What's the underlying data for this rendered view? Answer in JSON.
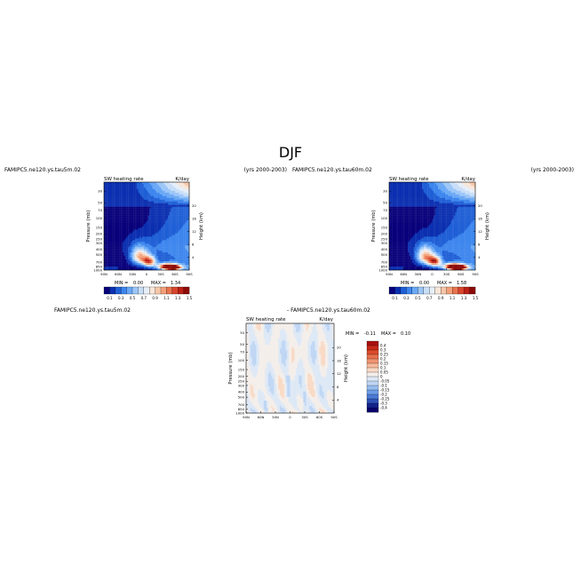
{
  "figure_title": "DJF",
  "chart_data": [
    {
      "type": "heatmap",
      "case_label": "FAMIPC5.ne120.ys.tau5m.02",
      "years_label": "(yrs 2000-2003)",
      "field_label": "SW heating rate",
      "units_label": "K/day",
      "stats": {
        "min_label": "MIN =",
        "min": "0.00",
        "max_label": "MAX =",
        "max": "1.34"
      },
      "xlabel": "",
      "ylabel": "Pressure (mb)",
      "y2label": "Height (km)",
      "x_ticks": [
        "90N",
        "60N",
        "30N",
        "0",
        "30S",
        "60S",
        "90S"
      ],
      "y_ticks": [
        "1000",
        "850",
        "700",
        "500",
        "400",
        "300",
        "250",
        "200",
        "150",
        "100",
        "70",
        "50",
        "30"
      ],
      "y2_ticks": [
        "4",
        "8",
        "12",
        "16",
        "20"
      ],
      "colorbar_labels": [
        "0.1",
        "0.3",
        "0.5",
        "0.7",
        "0.9",
        "1.1",
        "1.3",
        "1.5"
      ],
      "colorbar_colors": [
        "#08007a",
        "#0b2fb0",
        "#1f5fd6",
        "#3d86ee",
        "#6aa8f5",
        "#9cc6f8",
        "#c8def8",
        "#e6eef8",
        "#f8e6d8",
        "#f7c6a8",
        "#f3a07a",
        "#e9744f",
        "#d8452d",
        "#bb2016",
        "#8c0a08"
      ],
      "blobs": [
        {
          "lat": -55,
          "p": 900,
          "value": 1.3,
          "sigma_lat": 12,
          "sigma_p": 60
        },
        {
          "lat": -45,
          "p": 850,
          "value": 1.25,
          "sigma_lat": 15,
          "sigma_p": 80
        },
        {
          "lat": -5,
          "p": 680,
          "value": 1.1,
          "sigma_lat": 10,
          "sigma_p": 110
        },
        {
          "lat": 15,
          "p": 550,
          "value": 0.9,
          "sigma_lat": 12,
          "sigma_p": 140
        }
      ]
    },
    {
      "type": "heatmap",
      "case_label": "FAMIPC5.ne120.ys.tau60m.02",
      "years_label": "(yrs 2000-2003)",
      "field_label": "SW heating rate",
      "units_label": "K/day",
      "stats": {
        "min_label": "MIN =",
        "min": "0.00",
        "max_label": "MAX =",
        "max": "1.58"
      },
      "xlabel": "",
      "ylabel": "Pressure (mb)",
      "y2label": "Height (km)",
      "x_ticks": [
        "90N",
        "60N",
        "30N",
        "0",
        "30S",
        "60S",
        "90S"
      ],
      "y_ticks": [
        "1000",
        "850",
        "700",
        "500",
        "400",
        "300",
        "250",
        "200",
        "150",
        "100",
        "70",
        "50",
        "30"
      ],
      "y2_ticks": [
        "4",
        "8",
        "12",
        "16",
        "20"
      ],
      "colorbar_labels": [
        "0.1",
        "0.3",
        "0.5",
        "0.7",
        "0.9",
        "1.1",
        "1.3",
        "1.5"
      ],
      "colorbar_colors": [
        "#08007a",
        "#0b2fb0",
        "#1f5fd6",
        "#3d86ee",
        "#6aa8f5",
        "#9cc6f8",
        "#c8def8",
        "#e6eef8",
        "#f8e6d8",
        "#f7c6a8",
        "#f3a07a",
        "#e9744f",
        "#d8452d",
        "#bb2016",
        "#8c0a08"
      ],
      "blobs": [
        {
          "lat": -55,
          "p": 900,
          "value": 1.5,
          "sigma_lat": 12,
          "sigma_p": 60
        },
        {
          "lat": -45,
          "p": 850,
          "value": 1.35,
          "sigma_lat": 15,
          "sigma_p": 80
        },
        {
          "lat": -5,
          "p": 680,
          "value": 1.15,
          "sigma_lat": 10,
          "sigma_p": 110
        },
        {
          "lat": 15,
          "p": 550,
          "value": 0.95,
          "sigma_lat": 12,
          "sigma_p": 140
        }
      ]
    },
    {
      "type": "heatmap",
      "case_label": "FAMIPC5.ne120.ys.tau5m.02",
      "diff_label": "- FAMIPC5.ne120.ys.tau60m.02",
      "field_label": "SW heating rate",
      "units_label": "K/day",
      "stats": {
        "min_label": "MIN =",
        "min": "-0.11",
        "max_label": "MAX =",
        "max": "0.10"
      },
      "xlabel": "",
      "ylabel": "Pressure (mb)",
      "y2label": "Height (km)",
      "x_ticks": [
        "90N",
        "60N",
        "30N",
        "0",
        "30S",
        "60S",
        "90S"
      ],
      "y_ticks": [
        "1000",
        "850",
        "700",
        "500",
        "400",
        "300",
        "250",
        "200",
        "150",
        "100",
        "70",
        "50",
        "30"
      ],
      "y2_ticks": [
        "4",
        "8",
        "12",
        "16",
        "20"
      ],
      "colorbar_labels": [
        "0.4",
        "0.3",
        "0.25",
        "0.2",
        "0.15",
        "0.1",
        "0.05",
        "0",
        "-0.05",
        "-0.1",
        "-0.15",
        "-0.2",
        "-0.25",
        "-0.3",
        "-0.4"
      ],
      "colorbar_colors": [
        "#a81010",
        "#c82818",
        "#db4a2a",
        "#e7704c",
        "#f09473",
        "#f6b99a",
        "#f9d9c4",
        "#f4eeea",
        "#dde8f6",
        "#bfd6f4",
        "#97bdf0",
        "#6d9de6",
        "#4a79d4",
        "#2e52b6",
        "#13238c",
        "#08006a"
      ]
    }
  ]
}
